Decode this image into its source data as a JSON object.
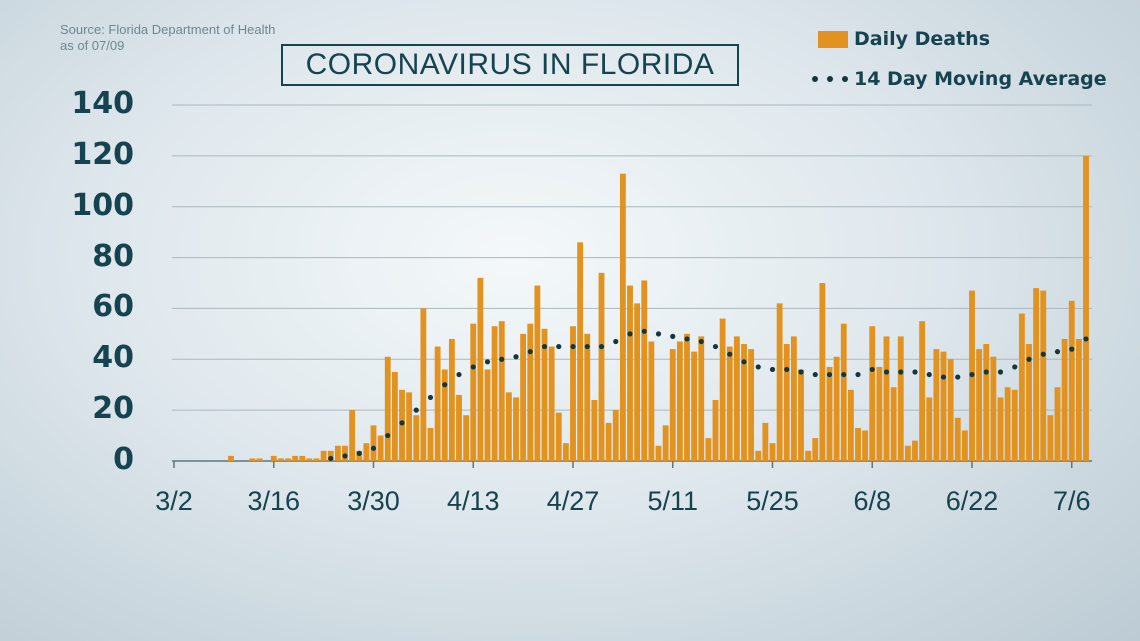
{
  "source": {
    "line1": "Source: Florida Department of Health",
    "line2": "as of 07/09"
  },
  "colors": {
    "bar": "#e2921e",
    "dots": "#14363d",
    "text": "#15434f",
    "grid": "#aab8be"
  },
  "chart_data": {
    "type": "bar",
    "title": "CORONAVIRUS IN FLORIDA",
    "xlabel": "",
    "ylabel": "",
    "ylim": [
      0,
      140
    ],
    "yticks": [
      0,
      20,
      40,
      60,
      80,
      100,
      120,
      140
    ],
    "grid": true,
    "legend_position": "top-right",
    "x_start_date": "3/2",
    "x_tick_labels": [
      "3/2",
      "3/16",
      "3/30",
      "4/13",
      "4/27",
      "5/11",
      "5/25",
      "6/8",
      "6/22",
      "7/6"
    ],
    "series": [
      {
        "name": "Daily Deaths",
        "kind": "bar",
        "values": [
          0,
          0,
          0,
          0,
          0,
          0,
          0,
          0,
          2,
          0,
          0,
          1,
          1,
          0,
          2,
          1,
          1,
          2,
          2,
          1,
          1,
          4,
          4,
          6,
          6,
          20,
          4,
          7,
          14,
          10,
          41,
          35,
          28,
          27,
          18,
          60,
          13,
          45,
          36,
          48,
          26,
          18,
          54,
          72,
          36,
          53,
          55,
          27,
          25,
          50,
          54,
          69,
          52,
          45,
          19,
          7,
          53,
          86,
          50,
          24,
          74,
          15,
          20,
          113,
          69,
          62,
          71,
          47,
          6,
          14,
          44,
          47,
          50,
          43,
          49,
          9,
          24,
          56,
          45,
          49,
          46,
          44,
          4,
          15,
          7,
          62,
          46,
          49,
          36,
          4,
          9,
          70,
          37,
          41,
          54,
          28,
          13,
          12,
          53,
          37,
          49,
          29,
          49,
          6,
          8,
          55,
          25,
          44,
          43,
          40,
          17,
          12,
          67,
          44,
          46,
          41,
          25,
          29,
          28,
          58,
          46,
          68,
          67,
          18,
          29,
          48,
          63,
          48,
          120
        ]
      },
      {
        "name": "14 Day Moving Average",
        "kind": "dotted-line",
        "x": [
          "3/24",
          "3/26",
          "3/28",
          "3/30",
          "4/1",
          "4/3",
          "4/5",
          "4/7",
          "4/9",
          "4/11",
          "4/13",
          "4/15",
          "4/17",
          "4/19",
          "4/21",
          "4/23",
          "4/25",
          "4/27",
          "4/29",
          "5/1",
          "5/3",
          "5/5",
          "5/7",
          "5/9",
          "5/11",
          "5/13",
          "5/15",
          "5/17",
          "5/19",
          "5/21",
          "5/23",
          "5/25",
          "5/27",
          "5/29",
          "5/31",
          "6/2",
          "6/4",
          "6/6",
          "6/8",
          "6/10",
          "6/12",
          "6/14",
          "6/16",
          "6/18",
          "6/20",
          "6/22",
          "6/24",
          "6/26",
          "6/28",
          "6/30",
          "7/2",
          "7/4",
          "7/6",
          "7/8"
        ],
        "values": [
          1,
          2,
          3,
          5,
          10,
          15,
          20,
          25,
          30,
          34,
          37,
          39,
          40,
          41,
          43,
          45,
          45,
          45,
          45,
          45,
          47,
          50,
          51,
          50,
          49,
          48,
          47,
          45,
          42,
          39,
          37,
          36,
          36,
          35,
          34,
          34,
          34,
          34,
          36,
          35,
          35,
          35,
          34,
          33,
          33,
          34,
          35,
          35,
          37,
          40,
          42,
          43,
          44,
          48
        ]
      }
    ]
  }
}
